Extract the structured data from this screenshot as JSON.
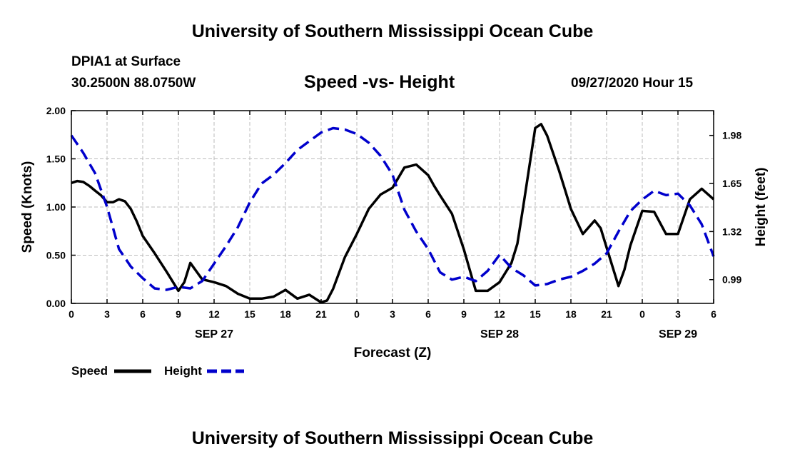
{
  "header": {
    "title": "University of Southern Mississippi Ocean Cube",
    "station": "DPIA1 at Surface",
    "coords": "30.2500N 88.0750W",
    "chart_title": "Speed -vs- Height",
    "datetime": "09/27/2020 Hour 15"
  },
  "footer": {
    "title": "University of Southern Mississippi Ocean Cube"
  },
  "colors": {
    "speed": "#000000",
    "height": "#0000cc",
    "grid": "#bbbbbb"
  },
  "chart_data": {
    "type": "line",
    "title": "Speed -vs- Height",
    "xlabel": "Forecast (Z)",
    "ylabel": "Speed (Knots)",
    "y2label": "Height (feet)",
    "x_range": [
      0,
      54
    ],
    "ylim": [
      0,
      2.0
    ],
    "y2lim": [
      0.827,
      2.15
    ],
    "grid": true,
    "x_ticks": [
      0,
      3,
      6,
      9,
      12,
      15,
      18,
      21,
      24,
      27,
      30,
      33,
      36,
      39,
      42,
      45,
      48,
      51,
      54
    ],
    "x_tick_labels": [
      "0",
      "3",
      "6",
      "9",
      "12",
      "15",
      "18",
      "21",
      "0",
      "3",
      "6",
      "9",
      "12",
      "15",
      "18",
      "21",
      "0",
      "3",
      "6"
    ],
    "date_labels": [
      {
        "x": 12,
        "text": "SEP 27"
      },
      {
        "x": 36,
        "text": "SEP 28"
      },
      {
        "x": 51,
        "text": "SEP 29"
      }
    ],
    "y_ticks": [
      0.0,
      0.5,
      1.0,
      1.5,
      2.0
    ],
    "y_tick_labels": [
      "0.00",
      "0.50",
      "1.00",
      "1.50",
      "2.00"
    ],
    "y2_ticks": [
      0.99,
      1.32,
      1.65,
      1.98
    ],
    "y2_tick_labels": [
      "0.99",
      "1.32",
      "1.65",
      "1.98"
    ],
    "series": [
      {
        "name": "Speed",
        "axis": "left",
        "style": "solid",
        "x": [
          0,
          0.5,
          1,
          1.5,
          2,
          2.5,
          3,
          3.5,
          4,
          4.5,
          5,
          5.5,
          6,
          7,
          8,
          9,
          9.5,
          10,
          11,
          12,
          13,
          14,
          15,
          16,
          17,
          18,
          19,
          20,
          21,
          21.5,
          22,
          23,
          24,
          25,
          26,
          27,
          28,
          29,
          30,
          30.5,
          31,
          32,
          33,
          34,
          35,
          36,
          37,
          37.5,
          38,
          39,
          39.5,
          40,
          41,
          41.5,
          42,
          43,
          44,
          44.5,
          45,
          46,
          46.5,
          47,
          48,
          49,
          50,
          51,
          52,
          53,
          54
        ],
        "values": [
          1.25,
          1.27,
          1.26,
          1.22,
          1.17,
          1.12,
          1.05,
          1.05,
          1.08,
          1.06,
          0.98,
          0.85,
          0.7,
          0.52,
          0.33,
          0.13,
          0.22,
          0.42,
          0.25,
          0.22,
          0.18,
          0.1,
          0.05,
          0.05,
          0.07,
          0.14,
          0.05,
          0.09,
          0.01,
          0.03,
          0.15,
          0.48,
          0.72,
          0.98,
          1.13,
          1.2,
          1.41,
          1.44,
          1.33,
          1.22,
          1.12,
          0.93,
          0.56,
          0.13,
          0.13,
          0.22,
          0.42,
          0.62,
          1.01,
          1.82,
          1.86,
          1.74,
          1.38,
          1.18,
          0.98,
          0.72,
          0.86,
          0.78,
          0.58,
          0.18,
          0.35,
          0.6,
          0.96,
          0.95,
          0.72,
          0.72,
          1.08,
          1.19,
          1.08
        ]
      },
      {
        "name": "Height",
        "axis": "right",
        "style": "dashed",
        "x": [
          0,
          1,
          2,
          3,
          4,
          5,
          6,
          7,
          8,
          9,
          10,
          11,
          12,
          13,
          14,
          15,
          16,
          17,
          18,
          19,
          20,
          21,
          22,
          23,
          24,
          25,
          26,
          27,
          28,
          29,
          30,
          31,
          32,
          33,
          34,
          35,
          36,
          37,
          38,
          39,
          40,
          41,
          42,
          43,
          44,
          45,
          46,
          47,
          48,
          49,
          50,
          51,
          52,
          53,
          54
        ],
        "values": [
          1.98,
          1.86,
          1.72,
          1.49,
          1.2,
          1.08,
          1.0,
          0.93,
          0.92,
          0.94,
          0.93,
          0.98,
          1.1,
          1.22,
          1.35,
          1.52,
          1.65,
          1.71,
          1.79,
          1.88,
          1.94,
          2.0,
          2.03,
          2.02,
          1.99,
          1.93,
          1.84,
          1.71,
          1.47,
          1.32,
          1.2,
          1.04,
          0.99,
          1.01,
          0.98,
          1.05,
          1.16,
          1.07,
          1.02,
          0.95,
          0.96,
          0.99,
          1.01,
          1.05,
          1.1,
          1.17,
          1.32,
          1.46,
          1.54,
          1.6,
          1.57,
          1.58,
          1.5,
          1.37,
          1.15
        ]
      }
    ],
    "legend": {
      "placement": "bottom-left",
      "items": [
        {
          "label": "Speed",
          "style": "solid"
        },
        {
          "label": "Height",
          "style": "dashed"
        }
      ]
    }
  }
}
